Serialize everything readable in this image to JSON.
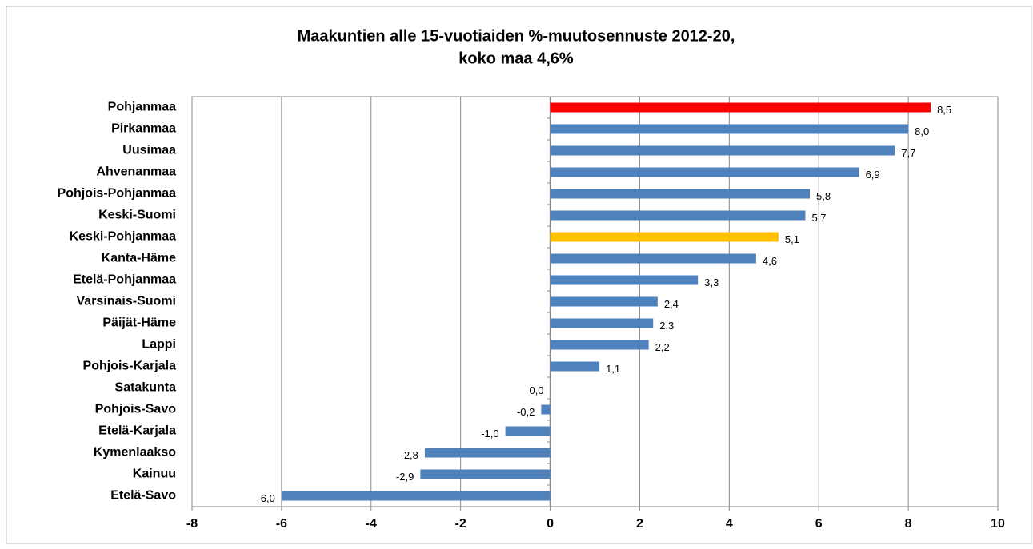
{
  "chart_data": {
    "type": "barh",
    "title": [
      "Maakuntien alle 15-vuotiaiden %-muutosennuste 2012-20,",
      "koko maa 4,6%"
    ],
    "categories": [
      "Pohjanmaa",
      "Pirkanmaa",
      "Uusimaa",
      "Ahvenanmaa",
      "Pohjois-Pohjanmaa",
      "Keski-Suomi",
      "Keski-Pohjanmaa",
      "Kanta-Häme",
      "Etelä-Pohjanmaa",
      "Varsinais-Suomi",
      "Päijät-Häme",
      "Lappi",
      "Pohjois-Karjala",
      "Satakunta",
      "Pohjois-Savo",
      "Etelä-Karjala",
      "Kymenlaakso",
      "Kainuu",
      "Etelä-Savo"
    ],
    "values": [
      8.5,
      8.0,
      7.7,
      6.9,
      5.8,
      5.7,
      5.1,
      4.6,
      3.3,
      2.4,
      2.3,
      2.2,
      1.1,
      0.0,
      -0.2,
      -1.0,
      -2.8,
      -2.9,
      -6.0
    ],
    "value_labels": [
      "8,5",
      "8,0",
      "7,7",
      "6,9",
      "5,8",
      "5,7",
      "5,1",
      "4,6",
      "3,3",
      "2,4",
      "2,3",
      "2,2",
      "1,1",
      "0,0",
      "-0,2",
      "-1,0",
      "-2,8",
      "-2,9",
      "-6,0"
    ],
    "colors": [
      "#ff0000",
      "#4f81bd",
      "#4f81bd",
      "#4f81bd",
      "#4f81bd",
      "#4f81bd",
      "#ffc000",
      "#4f81bd",
      "#4f81bd",
      "#4f81bd",
      "#4f81bd",
      "#4f81bd",
      "#4f81bd",
      "#4f81bd",
      "#4f81bd",
      "#4f81bd",
      "#4f81bd",
      "#4f81bd",
      "#4f81bd"
    ],
    "xlim": [
      -8,
      10
    ],
    "xticks": [
      -8,
      -6,
      -4,
      -2,
      0,
      2,
      4,
      6,
      8,
      10
    ],
    "grid": true
  }
}
